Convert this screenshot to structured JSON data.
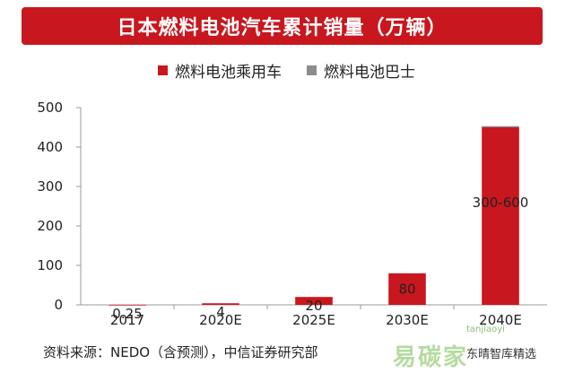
{
  "title": "日本燃料电池汽车累计销量（万辆）",
  "legend": [
    {
      "label": "燃料电池乘用车",
      "color": "#c8171e"
    },
    {
      "label": "燃料电池巴士",
      "color": "#8c8c8c"
    }
  ],
  "source": "资料来源：NEDO（含预测），中信证券研究部",
  "watermark": {
    "text": "易碳家",
    "credit": "东晴智库精选",
    "url": "tanjiaoyi"
  },
  "chart_data": {
    "type": "bar",
    "stacked": true,
    "categories": [
      "2017",
      "2020E",
      "2025E",
      "2030E",
      "2040E"
    ],
    "series": [
      {
        "name": "燃料电池乘用车",
        "color": "#c8171e",
        "values": [
          0.25,
          4,
          20,
          80,
          450
        ]
      },
      {
        "name": "燃料电池巴士",
        "color": "#8c8c8c",
        "values": [
          0,
          0,
          0,
          0,
          3
        ]
      }
    ],
    "data_labels": [
      "0.25",
      "4",
      "20",
      "80",
      "300-600"
    ],
    "ylim": [
      0,
      500
    ],
    "yticks": [
      0,
      100,
      200,
      300,
      400,
      500
    ],
    "grid": false
  }
}
